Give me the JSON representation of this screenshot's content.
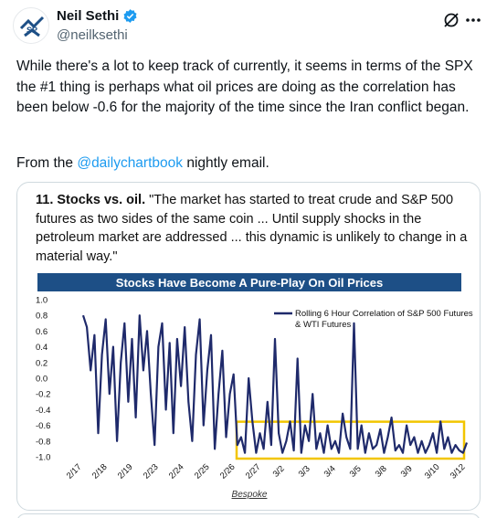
{
  "author": {
    "display_name": "Neil Sethi",
    "handle": "@neilksethi"
  },
  "tweet": {
    "text": "While there's a lot to keep track of currently, it seems in terms of the SPX the #1 thing is perhaps what oil prices are doing as the correlation has been below -0.6 for the majority of the time since the Iran conflict began.",
    "from_prefix": "From the ",
    "mention": "@dailychartbook",
    "from_suffix": " nightly email."
  },
  "card": {
    "number": "11. Stocks vs. oil.",
    "quote": " \"The market has started to treat crude and S&P 500 futures as two sides of the same coin ... Until supply shocks in the petroleum market are addressed ... this dynamic is unlikely to change in a material way.\"",
    "source": "Bespoke"
  },
  "colors": {
    "line": "#1f2a6b",
    "title_bar": "#1d4f86",
    "highlight": "#f2c500",
    "link": "#1d9bf0"
  },
  "chart_data": {
    "type": "line",
    "title": "Stocks Have Become A Pure-Play On Oil Prices",
    "legend": "Rolling 6 Hour Correlation of S&P 500 Futures & WTI Futures",
    "legend_position": "top-right",
    "ylim": [
      -1.0,
      1.0
    ],
    "yticks": [
      "1.0",
      "0.8",
      "0.6",
      "0.4",
      "0.2",
      "0.0",
      "-0.2",
      "-0.4",
      "-0.6",
      "-0.8",
      "-1.0"
    ],
    "xticks": [
      "2/17",
      "2/18",
      "2/19",
      "2/23",
      "2/24",
      "2/25",
      "2/26",
      "2/27",
      "3/2",
      "3/3",
      "3/4",
      "3/5",
      "3/8",
      "3/9",
      "3/10",
      "3/12"
    ],
    "highlight_range_y": [
      -1.0,
      -0.6
    ],
    "series": [
      {
        "name": "Rolling 6 Hour Correlation of S&P 500 Futures & WTI Futures",
        "values": [
          0.8,
          0.65,
          0.1,
          0.55,
          -0.7,
          0.3,
          0.75,
          -0.2,
          0.4,
          -0.8,
          0.2,
          0.7,
          -0.3,
          0.5,
          -0.5,
          0.8,
          0.1,
          0.6,
          -0.2,
          -0.85,
          0.4,
          0.7,
          -0.4,
          0.45,
          -0.7,
          0.5,
          -0.1,
          0.65,
          -0.3,
          -0.8,
          0.3,
          0.75,
          -0.6,
          0.1,
          0.55,
          -0.9,
          -0.2,
          0.35,
          -0.75,
          -0.2,
          0.05,
          -0.85,
          -0.75,
          -0.95,
          0.0,
          -0.55,
          -0.95,
          -0.7,
          -0.9,
          -0.3,
          -0.85,
          0.5,
          -0.7,
          -0.95,
          -0.8,
          -0.55,
          -0.92,
          0.25,
          -0.95,
          -0.6,
          -0.8,
          -0.2,
          -0.9,
          -0.7,
          -0.95,
          -0.6,
          -0.9,
          -0.8,
          -0.95,
          -0.45,
          -0.75,
          -0.9,
          0.7,
          -0.9,
          -0.6,
          -0.95,
          -0.7,
          -0.9,
          -0.85,
          -0.65,
          -0.95,
          -0.75,
          -0.5,
          -0.92,
          -0.85,
          -0.95,
          -0.6,
          -0.85,
          -0.75,
          -0.95,
          -0.8,
          -0.95,
          -0.85,
          -0.7,
          -0.95,
          -0.55,
          -0.9,
          -0.75,
          -0.95,
          -0.85,
          -0.92,
          -0.95,
          -0.82
        ]
      }
    ]
  }
}
